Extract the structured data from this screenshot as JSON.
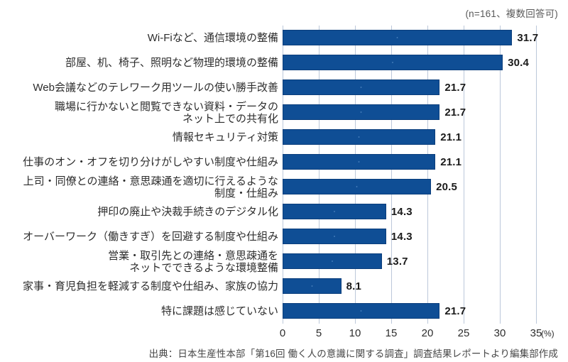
{
  "header": {
    "note": "(n=161、複数回答可)"
  },
  "footer": {
    "source": "出典：日本生産性本部「第16回 働く人の意識に関する調査」調査結果レポートより編集部作成"
  },
  "chart_data": {
    "type": "bar",
    "orientation": "horizontal",
    "title": "",
    "categories": [
      "Wi-Fiなど、通信環境の整備",
      "部屋、机、椅子、照明など物理的環境の整備",
      "Web会議などのテレワーク用ツールの使い勝手改善",
      "職場に行かないと閲覧できない資料・データの\nネット上での共有化",
      "情報セキュリティ対策",
      "仕事のオン・オフを切り分けがしやすい制度や仕組み",
      "上司・同僚との連絡・意思疎通を適切に行えるような\n制度・仕組み",
      "押印の廃止や決裁手続きのデジタル化",
      "オーバーワーク（働きすぎ）を回避する制度や仕組み",
      "営業・取引先との連絡・意思疎通を\nネットでできるような環境整備",
      "家事・育児負担を軽減する制度や仕組み、家族の協力",
      "特に課題は感じていない"
    ],
    "values": [
      31.7,
      30.4,
      21.7,
      21.7,
      21.1,
      21.1,
      20.5,
      14.3,
      14.3,
      13.7,
      8.1,
      21.7
    ],
    "x_ticks": [
      0,
      5,
      10,
      15,
      20,
      25,
      30,
      35
    ],
    "xlim": [
      0,
      35
    ],
    "x_unit": "(%)",
    "grid": true,
    "legend": false,
    "colors": {
      "bar": "#0f4e95",
      "bar_dot": "rgba(125,175,225,0.45)",
      "bar_border": "#0b3e7c",
      "gridline": "#bcc8da",
      "value_label": "#1a1a1a"
    }
  }
}
